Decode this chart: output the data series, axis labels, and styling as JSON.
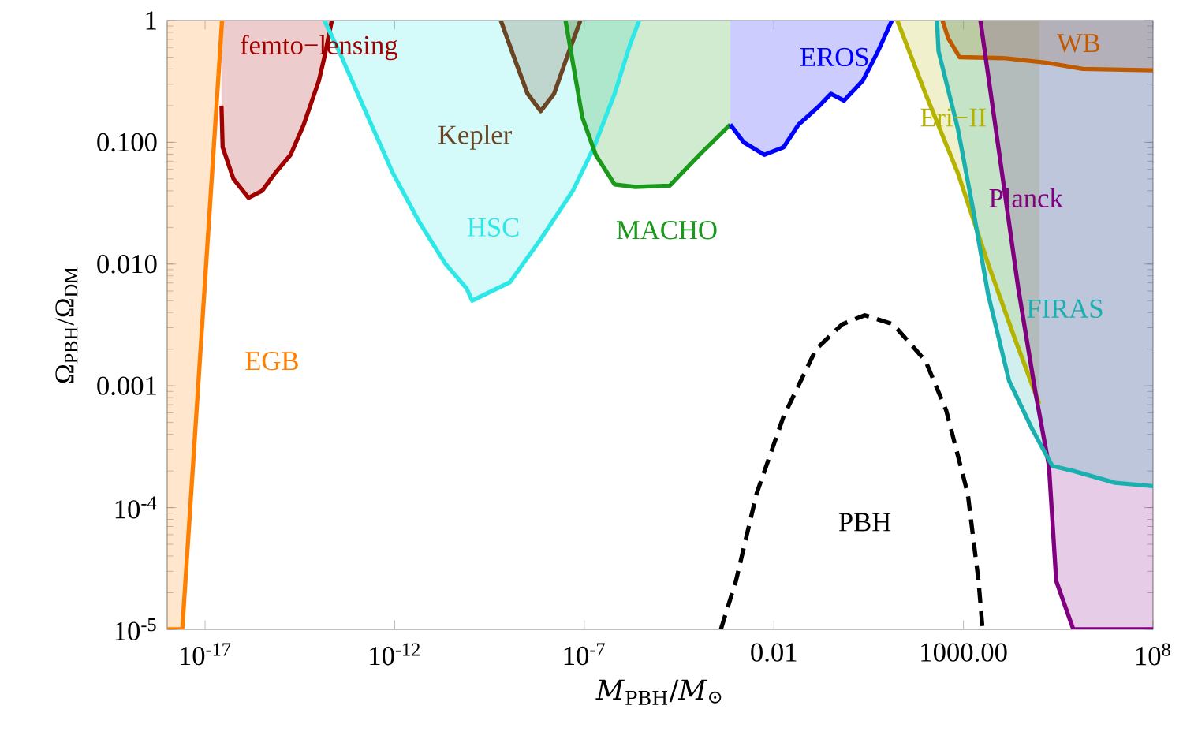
{
  "chart_data": {
    "type": "line",
    "xlabel": "*M*$_{PBH}$/*M*$_{⊙}$",
    "ylabel": "Ω$_{PBH}$/Ω$_{DM}$",
    "log": "xy",
    "xlim": [
      1e-18,
      100000000.0
    ],
    "ylim": [
      1e-05,
      1
    ],
    "xticks": [
      {
        "value": 1e-17,
        "label": "10$^{-17}$"
      },
      {
        "value": 1e-12,
        "label": "10$^{-12}$"
      },
      {
        "value": 1e-07,
        "label": "10$^{-7}$"
      },
      0.01,
      {
        "value": 1000,
        "label": "1000.00"
      },
      {
        "value": 100000000.0,
        "label": "10$^{8}$"
      }
    ],
    "yticks": [
      {
        "value": 1e-05,
        "label": "10$^{-5}$"
      },
      {
        "value": 0.0001,
        "label": "10$^{-4}$"
      },
      0.001,
      {
        "value": 0.01,
        "label": "0.010"
      },
      {
        "value": 0.1,
        "label": "0.100"
      },
      1
    ],
    "series": [
      {
        "color": "#ff8000",
        "x": [
          1e-18,
          2.5e-18,
          2.8e-17
        ],
        "values": [
          1e-05,
          1e-05,
          1
        ],
        "lower": [
          1e-05,
          1e-05,
          1
        ],
        "upper": [
          1,
          1,
          1
        ]
      },
      {
        "color": "#a00000",
        "x": [
          2.7e-17,
          2.9e-17,
          5.6e-17,
          1.4e-16,
          3.2e-16,
          7.1e-16,
          1.8e-15,
          4e-15,
          1e-14,
          1.4e-14,
          2.2e-14
        ],
        "values": [
          0.2,
          0.091,
          0.05,
          0.035,
          0.04,
          0.056,
          0.079,
          0.14,
          0.32,
          0.5,
          1
        ],
        "lower": [
          0.2,
          0.091,
          0.05,
          0.035,
          0.04,
          0.056,
          0.079,
          0.14,
          0.32,
          0.5,
          1
        ],
        "upper": [
          1,
          1,
          1,
          1,
          1,
          1,
          1,
          1,
          1,
          1,
          1
        ]
      },
      {
        "color": "#2ee8e8",
        "x": [
          1.4e-14,
          4e-14,
          2e-13,
          8.9e-13,
          4.5e-12,
          2.2e-11,
          7.9e-11,
          1.1e-10,
          1.1e-09,
          7.1e-09,
          5e-08,
          1.8e-07,
          6.3e-07,
          1.6e-06,
          2.8e-06
        ],
        "values": [
          1,
          0.5,
          0.16,
          0.056,
          0.022,
          0.01,
          0.0063,
          0.005,
          0.0071,
          0.016,
          0.04,
          0.091,
          0.25,
          0.63,
          1
        ],
        "lower": [
          1,
          0.5,
          0.16,
          0.056,
          0.022,
          0.01,
          0.0063,
          0.005,
          0.0071,
          0.016,
          0.04,
          0.091,
          0.25,
          0.63,
          1
        ],
        "upper": [
          1,
          1,
          1,
          1,
          1,
          1,
          1,
          1,
          1,
          1,
          1,
          1,
          1,
          1,
          1
        ]
      },
      {
        "color": "#6b4423",
        "x": [
          6.3e-10,
          1.4e-09,
          3.2e-09,
          7.1e-09,
          1.6e-08,
          3.5e-08,
          7.9e-08
        ],
        "values": [
          1,
          0.5,
          0.25,
          0.18,
          0.25,
          0.5,
          1
        ],
        "lower": [
          1,
          0.5,
          0.25,
          0.18,
          0.25,
          0.5,
          1
        ],
        "upper": [
          1,
          1,
          1,
          1,
          1,
          1,
          1
        ]
      },
      {
        "color": "#1a991a",
        "x": [
          3.2e-08,
          5e-08,
          8.9e-08,
          2e-07,
          6.3e-07,
          2.2e-06,
          1.8e-05,
          0.00011,
          0.00071
        ],
        "values": [
          1,
          0.45,
          0.16,
          0.079,
          0.045,
          0.043,
          0.044,
          0.079,
          0.14
        ],
        "lower": [
          1,
          0.45,
          0.16,
          0.079,
          0.045,
          0.043,
          0.044,
          0.079,
          0.14
        ],
        "upper": [
          1,
          1,
          1,
          1,
          1,
          1,
          1,
          1,
          1
        ]
      },
      {
        "color": "#0000ff",
        "x": [
          0.00071,
          0.0016,
          0.0056,
          0.018,
          0.045,
          0.16,
          0.32,
          0.71,
          2.2,
          5.6,
          13
        ],
        "values": [
          0.14,
          0.1,
          0.079,
          0.091,
          0.14,
          0.2,
          0.25,
          0.22,
          0.32,
          0.56,
          1
        ],
        "lower": [
          0.14,
          0.1,
          0.079,
          0.091,
          0.14,
          0.2,
          0.25,
          0.22,
          0.32,
          0.56,
          1
        ],
        "upper": [
          1,
          1,
          1,
          1,
          1,
          1,
          1,
          1,
          1,
          1,
          1
        ]
      },
      {
        "color": "#b3b300",
        "x": [
          18,
          100,
          710,
          4500,
          22000,
          100000.0
        ],
        "values": [
          1,
          0.25,
          0.056,
          0.01,
          0.0025,
          0.00071
        ],
        "lower": [
          1,
          0.25,
          0.056,
          0.01,
          0.0025,
          0.00071
        ],
        "upper": [
          1,
          1,
          1,
          1,
          1,
          1
        ]
      },
      {
        "color": "#c05a00",
        "x": [
          280,
          400,
          790,
          13000,
          160000.0,
          1400000.0,
          100000000.0
        ],
        "values": [
          1,
          0.71,
          0.5,
          0.49,
          0.45,
          0.4,
          0.39
        ],
        "lower": [
          1,
          0.71,
          0.5,
          0.49,
          0.45,
          0.4,
          0.39
        ],
        "upper": [
          1,
          1,
          1,
          1,
          1,
          1,
          1
        ]
      },
      {
        "color": "#800080",
        "x": [
          2800,
          8900,
          28000,
          79000,
          180000.0,
          280000.0,
          790000.0,
          100000000.0
        ],
        "values": [
          1,
          0.079,
          0.0063,
          0.00089,
          0.00022,
          2.5e-05,
          1e-05,
          1e-05
        ],
        "lower": [
          1,
          0.079,
          0.0063,
          0.00089,
          0.00022,
          2.5e-05,
          1e-05,
          1e-05
        ],
        "upper": [
          1,
          1,
          1,
          1,
          1,
          1,
          1,
          1
        ]
      },
      {
        "color": "#1ab0b0",
        "x": [
          200,
          220,
          710,
          1800,
          4500,
          16000,
          63000,
          220000.0,
          790000.0,
          10000000.0,
          100000000.0
        ],
        "values": [
          1,
          0.56,
          0.13,
          0.028,
          0.0056,
          0.0011,
          0.00045,
          0.00022,
          0.0002,
          0.00016,
          0.00015
        ],
        "lower": [
          1,
          0.56,
          0.13,
          0.028,
          0.0056,
          0.0011,
          0.00045,
          0.00022,
          0.0002,
          0.00016,
          0.00015
        ],
        "upper": [
          1,
          1,
          1,
          1,
          1,
          1,
          1,
          1,
          1,
          1,
          1
        ]
      },
      {
        "line_style": "dashed",
        "color": "#000000",
        "x": [
          0.0004,
          0.001,
          0.0035,
          0.018,
          0.13,
          0.63,
          2.5,
          14,
          100,
          350,
          1300,
          2500,
          3200
        ],
        "values": [
          1e-05,
          2.5e-05,
          0.00013,
          0.00056,
          0.002,
          0.0032,
          0.0038,
          0.0032,
          0.0016,
          0.00063,
          0.00013,
          2.5e-05,
          1e-05
        ]
      }
    ],
    "annotations": [
      "EGB",
      "femto−lensing",
      "HSC",
      "Kepler",
      "MACHO",
      "EROS",
      "Eri−II",
      "WB",
      "Planck",
      "FIRAS",
      "PBH"
    ]
  }
}
